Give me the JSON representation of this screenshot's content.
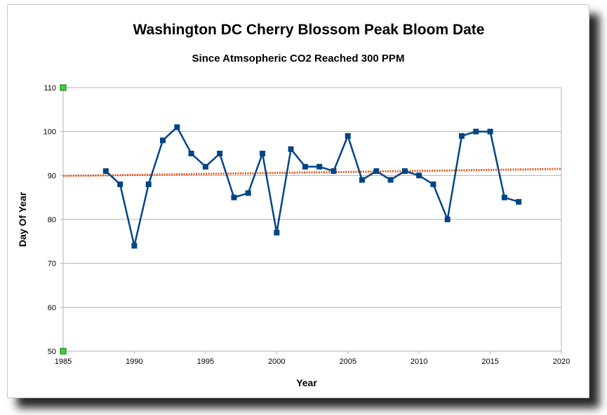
{
  "chart_data": {
    "type": "line",
    "title": "Washington DC Cherry Blossom Peak Bloom Date",
    "subtitle": "Since Atmsopheric CO2 Reached 300 PPM",
    "xlabel": "Year",
    "ylabel": "Day Of Year",
    "xlim": [
      1985,
      2020
    ],
    "ylim": [
      50,
      110
    ],
    "x_ticks": [
      1985,
      1990,
      1995,
      2000,
      2005,
      2010,
      2015,
      2020
    ],
    "y_ticks": [
      50,
      60,
      70,
      80,
      90,
      100,
      110
    ],
    "grid": true,
    "series": [
      {
        "x": [
          1988,
          1989,
          1990,
          1991,
          1992,
          1993,
          1994,
          1995,
          1996,
          1997,
          1998,
          1999,
          2000,
          2001,
          2002,
          2003,
          2004,
          2005,
          2006,
          2007,
          2008,
          2009,
          2010,
          2011,
          2012,
          2013,
          2014,
          2015,
          2016,
          2017
        ],
        "values": [
          91,
          88,
          74,
          88,
          98,
          101,
          95,
          92,
          95,
          85,
          86,
          95,
          77,
          96,
          92,
          92,
          91,
          99,
          89,
          91,
          89,
          91,
          90,
          88,
          80,
          99,
          100,
          100,
          85,
          84
        ],
        "color": "#004586",
        "marker": "square"
      }
    ],
    "trendline": {
      "x": [
        1985,
        2020
      ],
      "values": [
        89.9,
        91.5
      ],
      "color": "#e35a1e",
      "style": "dotted"
    }
  }
}
